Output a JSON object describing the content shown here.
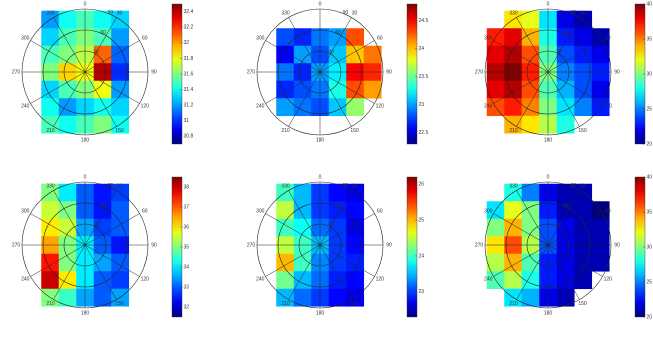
{
  "chart_data": [
    {
      "type": "polar-heatmap",
      "rlim": [
        0,
        90
      ],
      "rticks": [
        30,
        60,
        90
      ],
      "theta_ticks": [
        0,
        30,
        60,
        90,
        120,
        150,
        180,
        210,
        240,
        270,
        300,
        330
      ],
      "x": [
        -75,
        -50,
        -25,
        0,
        25,
        50,
        75
      ],
      "y": [
        75,
        50,
        25,
        0,
        -25,
        -50,
        -75
      ],
      "clim": [
        30.7,
        32.5
      ],
      "cticks": [
        30.8,
        31,
        31.2,
        31.4,
        31.6,
        31.8,
        32,
        32.2,
        32.4
      ],
      "colormap": "jet",
      "z": [
        [
          null,
          31.2,
          31.4,
          31.5,
          31.4,
          31.3,
          null
        ],
        [
          null,
          31.3,
          31.5,
          31.6,
          31.5,
          31.2,
          null
        ],
        [
          null,
          31.5,
          31.6,
          31.7,
          32.1,
          31.1,
          null
        ],
        [
          null,
          31.6,
          31.9,
          31.8,
          32.4,
          31.0,
          null
        ],
        [
          null,
          31.3,
          31.5,
          31.6,
          31.8,
          31.2,
          null
        ],
        [
          null,
          31.4,
          31.2,
          31.3,
          31.4,
          31.3,
          null
        ],
        [
          null,
          31.5,
          31.4,
          31.5,
          31.6,
          31.4,
          null
        ]
      ]
    },
    {
      "type": "polar-heatmap",
      "rlim": [
        0,
        90
      ],
      "rticks": [
        30,
        60,
        90
      ],
      "theta_ticks": [
        0,
        30,
        60,
        90,
        120,
        150,
        180,
        210,
        240,
        270,
        300,
        330
      ],
      "x": [
        -75,
        -50,
        -25,
        0,
        25,
        50,
        75
      ],
      "y": [
        75,
        50,
        25,
        0,
        -25,
        -50,
        -75
      ],
      "clim": [
        22.3,
        24.8
      ],
      "cticks": [
        22.5,
        23,
        23.5,
        24,
        24.5
      ],
      "colormap": "jet",
      "z": [
        [
          null,
          null,
          null,
          null,
          null,
          null,
          null
        ],
        [
          null,
          22.8,
          22.7,
          22.9,
          23.0,
          24.3,
          null
        ],
        [
          null,
          22.6,
          23.0,
          22.8,
          23.1,
          24.0,
          24.2
        ],
        [
          null,
          22.9,
          22.7,
          23.0,
          23.2,
          24.5,
          24.4
        ],
        [
          null,
          22.7,
          22.8,
          22.9,
          23.3,
          24.3,
          24.1
        ],
        [
          null,
          23.0,
          22.9,
          22.8,
          23.1,
          23.6,
          null
        ],
        [
          null,
          null,
          null,
          null,
          null,
          null,
          null
        ]
      ]
    },
    {
      "type": "polar-heatmap",
      "rlim": [
        0,
        90
      ],
      "rticks": [
        30,
        60,
        90
      ],
      "theta_ticks": [
        0,
        30,
        60,
        90,
        120,
        150,
        180,
        210,
        240,
        270,
        300,
        330
      ],
      "x": [
        -75,
        -50,
        -25,
        0,
        25,
        50,
        75
      ],
      "y": [
        75,
        50,
        25,
        0,
        -25,
        -50,
        -75
      ],
      "clim": [
        20,
        40
      ],
      "cticks": [
        20,
        25,
        30,
        35,
        40
      ],
      "colormap": "jet",
      "z": [
        [
          null,
          33,
          32,
          27,
          22,
          21,
          null
        ],
        [
          37,
          38,
          34,
          28,
          23,
          22,
          21
        ],
        [
          38,
          39,
          36,
          29,
          24,
          23,
          22
        ],
        [
          39,
          40,
          37,
          30,
          25,
          24,
          23
        ],
        [
          38,
          39,
          36,
          29,
          26,
          24,
          22
        ],
        [
          36,
          37,
          35,
          30,
          27,
          25,
          23
        ],
        [
          null,
          34,
          33,
          31,
          28,
          null,
          null
        ]
      ]
    },
    {
      "type": "polar-heatmap",
      "rlim": [
        0,
        90
      ],
      "rticks": [
        30,
        60,
        90
      ],
      "theta_ticks": [
        0,
        30,
        60,
        90,
        120,
        150,
        180,
        210,
        240,
        270,
        300,
        330
      ],
      "x": [
        -75,
        -50,
        -25,
        0,
        25,
        50,
        75
      ],
      "y": [
        75,
        50,
        25,
        0,
        -25,
        -50,
        -75
      ],
      "clim": [
        31.5,
        38.5
      ],
      "cticks": [
        32,
        33,
        34,
        35,
        36,
        37,
        38
      ],
      "colormap": "jet",
      "z": [
        [
          null,
          35,
          34,
          33,
          32.5,
          32.8,
          null
        ],
        [
          null,
          35.5,
          35,
          33,
          32.5,
          33,
          null
        ],
        [
          null,
          36,
          35.5,
          33.5,
          32.8,
          33,
          null
        ],
        [
          null,
          36.5,
          35,
          34,
          33,
          32.5,
          null
        ],
        [
          null,
          37.5,
          35,
          34,
          33.5,
          33,
          null
        ],
        [
          null,
          38,
          36,
          34,
          33,
          32.8,
          null
        ],
        [
          null,
          35,
          34.5,
          33.5,
          33,
          33.5,
          null
        ]
      ]
    },
    {
      "type": "polar-heatmap",
      "rlim": [
        0,
        90
      ],
      "rticks": [
        30,
        60,
        90
      ],
      "theta_ticks": [
        0,
        30,
        60,
        90,
        120,
        150,
        180,
        210,
        240,
        270,
        300,
        330
      ],
      "x": [
        -75,
        -50,
        -25,
        0,
        25,
        50,
        75
      ],
      "y": [
        75,
        50,
        25,
        0,
        -25,
        -50,
        -75
      ],
      "clim": [
        22.3,
        26.2
      ],
      "cticks": [
        23,
        24,
        25,
        26
      ],
      "colormap": "jet",
      "z": [
        [
          null,
          24,
          23.5,
          23,
          22.8,
          22.7,
          null
        ],
        [
          null,
          24.5,
          23.5,
          23,
          22.9,
          22.8,
          null
        ],
        [
          null,
          24,
          23.8,
          23.2,
          23,
          22.7,
          null
        ],
        [
          null,
          24.5,
          24,
          23.5,
          23,
          22.8,
          null
        ],
        [
          null,
          25,
          24,
          23.3,
          23,
          22.9,
          null
        ],
        [
          null,
          24.2,
          23.5,
          23.2,
          22.9,
          22.8,
          null
        ],
        [
          null,
          23.5,
          23.2,
          23,
          22.8,
          22.7,
          null
        ]
      ]
    },
    {
      "type": "polar-heatmap",
      "rlim": [
        0,
        90
      ],
      "rticks": [
        30,
        60,
        90
      ],
      "theta_ticks": [
        0,
        30,
        60,
        90,
        120,
        150,
        180,
        210,
        240,
        270,
        300,
        330
      ],
      "x": [
        -75,
        -50,
        -25,
        0,
        25,
        50,
        75
      ],
      "y": [
        75,
        50,
        25,
        0,
        -25,
        -50,
        -75
      ],
      "clim": [
        20,
        40
      ],
      "cticks": [
        20,
        25,
        30,
        35,
        40
      ],
      "colormap": "jet",
      "z": [
        [
          null,
          28,
          25,
          22,
          21,
          21,
          null
        ],
        [
          27,
          32,
          30,
          23,
          21,
          21,
          20
        ],
        [
          30,
          34,
          30,
          24,
          22,
          21,
          21
        ],
        [
          33,
          36,
          31,
          24,
          22,
          21,
          21
        ],
        [
          31,
          34,
          29,
          23,
          22,
          21,
          21
        ],
        [
          29,
          31,
          28,
          23,
          22,
          21,
          null
        ],
        [
          null,
          27,
          26,
          22,
          21,
          null,
          null
        ]
      ]
    }
  ]
}
